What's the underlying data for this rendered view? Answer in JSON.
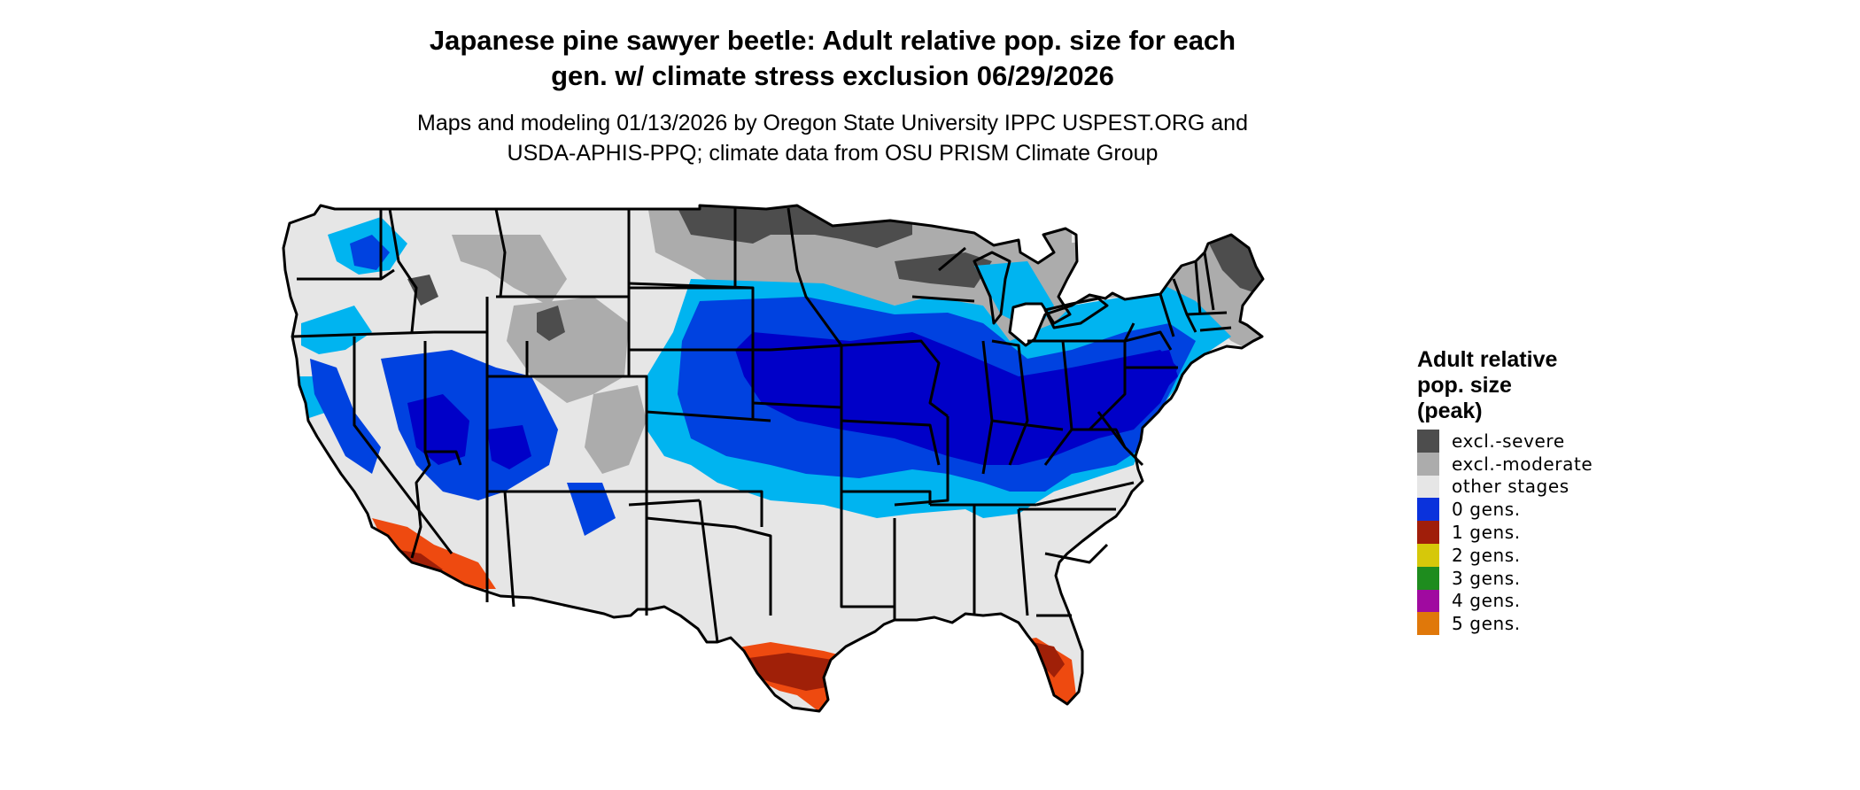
{
  "title": {
    "line1": "Japanese pine sawyer beetle: Adult relative pop. size for each",
    "line2": "gen. w/ climate stress exclusion 06/29/2026"
  },
  "subtitle": {
    "line1": "Maps and modeling 01/13/2026 by Oregon State University IPPC USPEST.ORG and",
    "line2": "USDA-APHIS-PPQ; climate data from OSU PRISM Climate Group"
  },
  "colors": {
    "excl_severe": "#4d4d4d",
    "excl_moderate": "#acacac",
    "other_stages": "#e6e6e6",
    "light_blue": "#00b4f0",
    "medium_blue": "#0042e0",
    "dark_blue": "#0000c8",
    "gen1_dark": "#a02008",
    "gen1_orange": "#ee4a10",
    "border": "#000000"
  },
  "legend": {
    "title_line1": "Adult relative",
    "title_line2": "pop. size",
    "title_line3": "(peak)",
    "items": [
      {
        "label": "excl.-severe",
        "color": "#4d4d4d"
      },
      {
        "label": "excl.-moderate",
        "color": "#acacac"
      },
      {
        "label": "other stages",
        "color": "#e6e6e6"
      },
      {
        "label": "0 gens.",
        "color": "#0a32dc"
      },
      {
        "label": "1 gens.",
        "color": "#a01e0a"
      },
      {
        "label": "2 gens.",
        "color": "#d6c80a"
      },
      {
        "label": "3 gens.",
        "color": "#1e8c1e"
      },
      {
        "label": "4 gens.",
        "color": "#a00aa0"
      },
      {
        "label": "5 gens.",
        "color": "#e0780a"
      }
    ]
  }
}
